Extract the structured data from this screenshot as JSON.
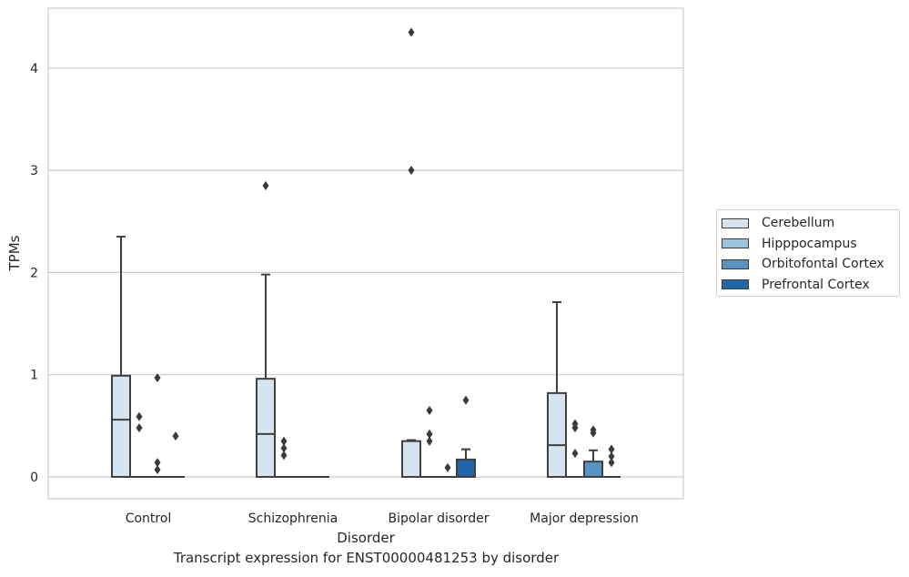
{
  "caption": "Transcript expression for ENST00000481253 by disorder",
  "chart_data": {
    "type": "box",
    "xlabel": "Disorder",
    "ylabel": "TPMs",
    "ylim": [
      -0.21,
      4.6
    ],
    "yticks": [
      0,
      1,
      2,
      3,
      4
    ],
    "grid": true,
    "legend_position": "right",
    "categories": [
      "Control",
      "Schizophrenia",
      "Bipolar disorder",
      "Major depression"
    ],
    "series": [
      {
        "name": "Cerebellum",
        "color": "#d6e3f1",
        "boxes": [
          {
            "q1": 0.0,
            "median": 0.56,
            "q3": 0.99,
            "whisker_low": 0.0,
            "whisker_high": 2.35,
            "outliers": []
          },
          {
            "q1": 0.0,
            "median": 0.42,
            "q3": 0.96,
            "whisker_low": 0.0,
            "whisker_high": 1.98,
            "outliers": [
              2.85
            ]
          },
          {
            "q1": 0.0,
            "median": 0.0,
            "q3": 0.35,
            "whisker_low": 0.0,
            "whisker_high": 0.36,
            "outliers": [
              3.0,
              4.35
            ]
          },
          {
            "q1": 0.0,
            "median": 0.31,
            "q3": 0.82,
            "whisker_low": 0.0,
            "whisker_high": 1.71,
            "outliers": []
          }
        ]
      },
      {
        "name": "Hipppocampus",
        "color": "#9ac5dc",
        "boxes": [
          {
            "q1": 0.0,
            "median": 0.0,
            "q3": 0.0,
            "whisker_low": 0.0,
            "whisker_high": 0.0,
            "outliers": [
              0.48,
              0.59
            ]
          },
          {
            "q1": 0.0,
            "median": 0.0,
            "q3": 0.0,
            "whisker_low": 0.0,
            "whisker_high": 0.0,
            "outliers": [
              0.21,
              0.28,
              0.35
            ]
          },
          {
            "q1": 0.0,
            "median": 0.0,
            "q3": 0.0,
            "whisker_low": 0.0,
            "whisker_high": 0.0,
            "outliers": [
              0.35,
              0.42,
              0.65
            ]
          },
          {
            "q1": 0.0,
            "median": 0.0,
            "q3": 0.0,
            "whisker_low": 0.0,
            "whisker_high": 0.0,
            "outliers": [
              0.23,
              0.48,
              0.52
            ]
          }
        ]
      },
      {
        "name": "Orbitofontal Cortex",
        "color": "#5895c2",
        "boxes": [
          {
            "q1": 0.0,
            "median": 0.0,
            "q3": 0.0,
            "whisker_low": 0.0,
            "whisker_high": 0.0,
            "outliers": [
              0.07,
              0.14,
              0.97
            ]
          },
          {
            "q1": 0.0,
            "median": 0.0,
            "q3": 0.0,
            "whisker_low": 0.0,
            "whisker_high": 0.0,
            "outliers": []
          },
          {
            "q1": 0.0,
            "median": 0.0,
            "q3": 0.0,
            "whisker_low": 0.0,
            "whisker_high": 0.0,
            "outliers": [
              0.09
            ]
          },
          {
            "q1": 0.0,
            "median": 0.0,
            "q3": 0.15,
            "whisker_low": 0.0,
            "whisker_high": 0.26,
            "outliers": [
              0.43,
              0.46
            ]
          }
        ]
      },
      {
        "name": "Prefrontal Cortex",
        "color": "#2264a8",
        "boxes": [
          {
            "q1": 0.0,
            "median": 0.0,
            "q3": 0.0,
            "whisker_low": 0.0,
            "whisker_high": 0.0,
            "outliers": [
              0.4
            ]
          },
          {
            "q1": 0.0,
            "median": 0.0,
            "q3": 0.0,
            "whisker_low": 0.0,
            "whisker_high": 0.0,
            "outliers": []
          },
          {
            "q1": 0.0,
            "median": 0.0,
            "q3": 0.17,
            "whisker_low": 0.0,
            "whisker_high": 0.27,
            "outliers": [
              0.75
            ]
          },
          {
            "q1": 0.0,
            "median": 0.0,
            "q3": 0.0,
            "whisker_low": 0.0,
            "whisker_high": 0.0,
            "outliers": [
              0.14,
              0.2,
              0.27
            ]
          }
        ]
      }
    ]
  }
}
